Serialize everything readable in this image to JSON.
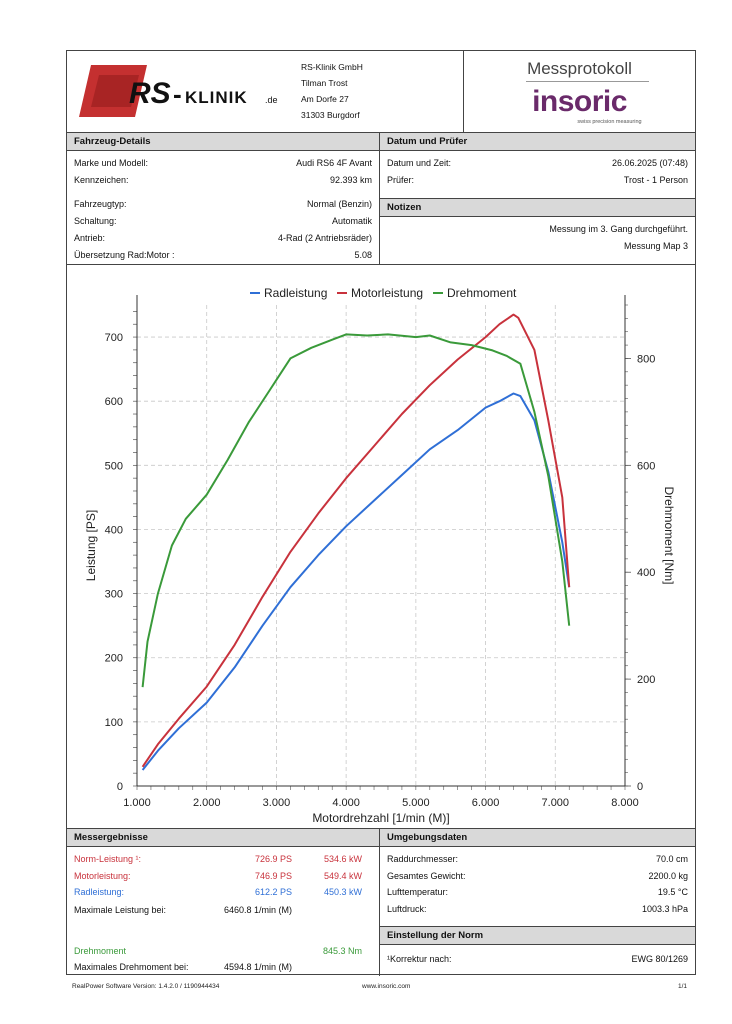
{
  "header": {
    "company": [
      "RS-Klinik GmbH",
      "Tilman Trost",
      "Am Dorfe 27",
      "31303 Burgdorf"
    ],
    "logo_text": "RS-KLINIK.de",
    "title": "Messprotokoll",
    "brand": "insoric",
    "brand_tagline": "swiss precision measuring"
  },
  "vehicle": {
    "title": "Fahrzeug-Details",
    "rows": [
      {
        "label": "Marke und Modell:",
        "value": "Audi RS6 4F Avant"
      },
      {
        "label": "Kennzeichen:",
        "value": "92.393 km"
      },
      {
        "label": "Fahrzeugtyp:",
        "value": "Normal (Benzin)"
      },
      {
        "label": "Schaltung:",
        "value": "Automatik"
      },
      {
        "label": "Antrieb:",
        "value": "4-Rad (2 Antriebsräder)"
      },
      {
        "label": "Übersetzung Rad:Motor :",
        "value": "5.08"
      }
    ]
  },
  "date_tester": {
    "title": "Datum und Prüfer",
    "rows": [
      {
        "label": "Datum und Zeit:",
        "value": "26.06.2025 (07:48)"
      },
      {
        "label": "Prüfer:",
        "value": "Trost - 1 Person"
      }
    ]
  },
  "notes": {
    "title": "Notizen",
    "lines": [
      "Messung im 3. Gang durchgeführt.",
      "Messung Map 3"
    ]
  },
  "chart_data": {
    "type": "line",
    "xlabel": "Motordrehzahl [1/min (M)]",
    "ylabel": "Leistung [PS]",
    "y2label": "Drehmoment [Nm]",
    "xlim": [
      1000,
      8000
    ],
    "ylim": [
      0,
      750
    ],
    "y2lim": [
      0,
      900
    ],
    "x_ticks": [
      "1.000",
      "2.000",
      "3.000",
      "4.000",
      "5.000",
      "6.000",
      "7.000",
      "8.000"
    ],
    "y_ticks": [
      "0",
      "100",
      "200",
      "300",
      "400",
      "500",
      "600",
      "700"
    ],
    "y2_ticks": [
      "0",
      "200",
      "400",
      "600",
      "800"
    ],
    "legend_position": "top",
    "series": [
      {
        "name": "Radleistung",
        "axis": "left",
        "color": "#2f6fd6",
        "x": [
          1080,
          1300,
          1600,
          2000,
          2400,
          2800,
          3200,
          3600,
          4000,
          4400,
          4800,
          5200,
          5600,
          6000,
          6200,
          6400,
          6500,
          6700,
          6900,
          7100,
          7200
        ],
        "y": [
          25,
          55,
          90,
          130,
          185,
          250,
          310,
          360,
          405,
          445,
          485,
          525,
          555,
          590,
          600,
          612,
          608,
          570,
          490,
          380,
          310
        ]
      },
      {
        "name": "Motorleistung",
        "axis": "left",
        "color": "#c8323c",
        "x": [
          1080,
          1300,
          1600,
          2000,
          2400,
          2800,
          3200,
          3600,
          4000,
          4400,
          4800,
          5200,
          5600,
          6000,
          6200,
          6400,
          6470,
          6700,
          6900,
          7100,
          7200
        ],
        "y": [
          30,
          65,
          105,
          155,
          220,
          295,
          365,
          425,
          480,
          530,
          580,
          625,
          665,
          700,
          720,
          735,
          730,
          680,
          570,
          450,
          310
        ]
      },
      {
        "name": "Drehmoment",
        "axis": "right",
        "color": "#3a9a3a",
        "x": [
          1080,
          1150,
          1300,
          1500,
          1700,
          2000,
          2300,
          2600,
          2900,
          3200,
          3500,
          3800,
          4000,
          4300,
          4600,
          5000,
          5200,
          5500,
          5800,
          6100,
          6300,
          6500,
          6700,
          6900,
          7100,
          7200
        ],
        "y": [
          185,
          270,
          360,
          450,
          500,
          545,
          610,
          680,
          740,
          800,
          820,
          835,
          845,
          843,
          845,
          840,
          843,
          830,
          825,
          815,
          805,
          790,
          700,
          580,
          420,
          300
        ]
      }
    ]
  },
  "results": {
    "title": "Messergebnisse",
    "rows": [
      {
        "label": "Norm-Leistung ¹:",
        "ps": "726.9 PS",
        "kw": "534.6 kW",
        "color": "#c8323c"
      },
      {
        "label": "Motorleistung:",
        "ps": "746.9 PS",
        "kw": "549.4 kW",
        "color": "#c8323c"
      },
      {
        "label": "Radleistung:",
        "ps": "612.2 PS",
        "kw": "450.3 kW",
        "color": "#2f6fd6"
      }
    ],
    "max_power_label": "Maximale Leistung bei:",
    "max_power_rpm": "6460.8 1/min (M)",
    "torque_label": "Drehmoment",
    "torque_value": "845.3 Nm",
    "torque_color": "#3a9a3a",
    "max_torque_label": "Maximales Drehmoment bei:",
    "max_torque_rpm": "4594.8 1/min (M)"
  },
  "environment": {
    "title": "Umgebungsdaten",
    "rows": [
      {
        "label": "Raddurchmesser:",
        "value": "70.0 cm"
      },
      {
        "label": "Gesamtes Gewicht:",
        "value": "2200.0 kg"
      },
      {
        "label": "Lufttemperatur:",
        "value": "19.5 °C"
      },
      {
        "label": "Luftdruck:",
        "value": "1003.3 hPa"
      }
    ]
  },
  "norm": {
    "title": "Einstellung der Norm",
    "label": "¹Korrektur nach:",
    "value": "EWG 80/1269"
  },
  "footer": {
    "software": "RealPower Software Version: 1.4.2.0 / 1190944434",
    "url": "www.insoric.com",
    "page": "1/1"
  }
}
